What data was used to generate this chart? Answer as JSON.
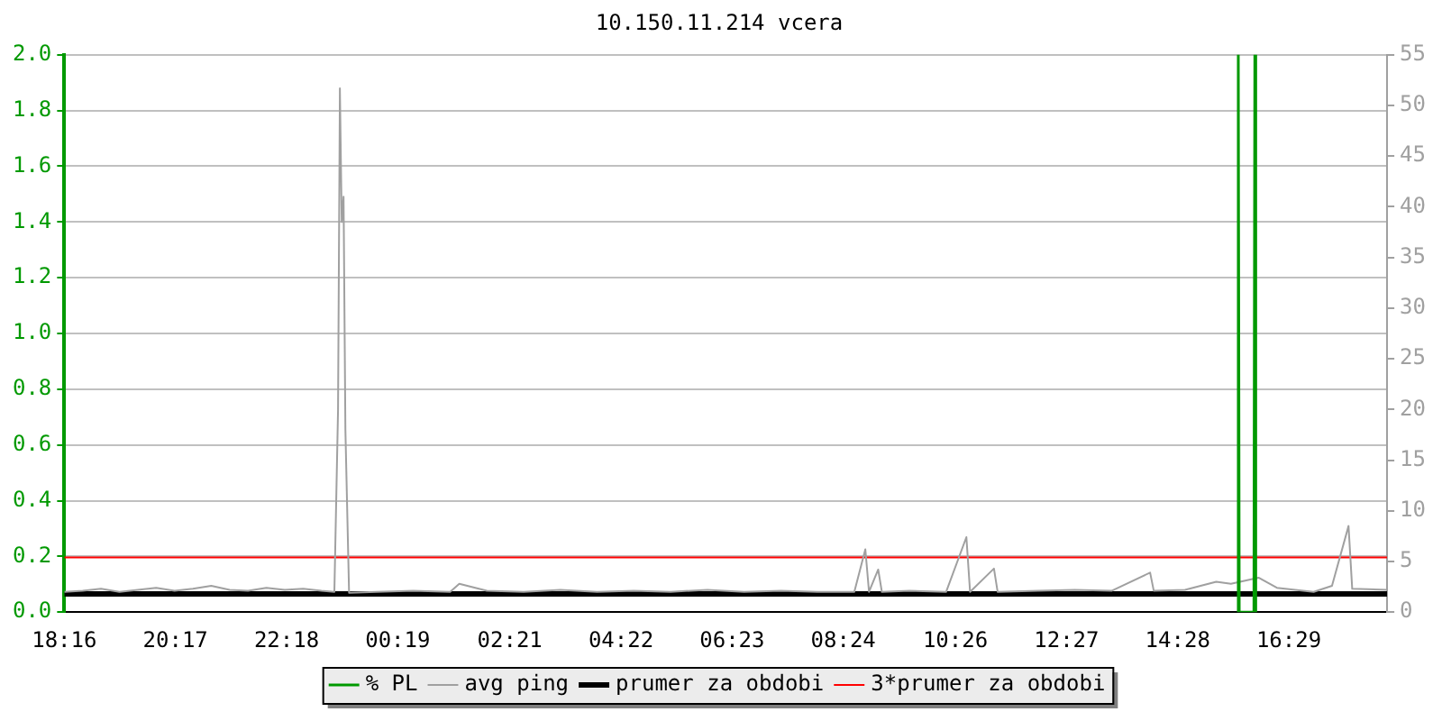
{
  "chart_data": {
    "type": "line",
    "title": "10.150.11.214 vcera",
    "xlim": [
      "--01-01T18:16",
      "--01-02T18:16"
    ],
    "xticks": [
      {
        "value": "--01-01T18:16",
        "label": "18:16"
      },
      {
        "value": "--01-01T20:17",
        "label": "20:17"
      },
      {
        "value": "--01-01T22:18",
        "label": "22:18"
      },
      {
        "value": "--01-02T00:19",
        "label": "00:19"
      },
      {
        "value": "--01-02T02:21",
        "label": "02:21"
      },
      {
        "value": "--01-02T04:22",
        "label": "04:22"
      },
      {
        "value": "--01-02T06:23",
        "label": "06:23"
      },
      {
        "value": "--01-02T08:24",
        "label": "08:24"
      },
      {
        "value": "--01-02T10:26",
        "label": "10:26"
      },
      {
        "value": "--01-02T12:27",
        "label": "12:27"
      },
      {
        "value": "--01-02T14:28",
        "label": "14:28"
      },
      {
        "value": "--01-02T16:29",
        "label": "16:29"
      }
    ],
    "ylim": [
      0,
      2
    ],
    "yticks": [
      {
        "value": 0,
        "label": "0.0"
      },
      0.2,
      0.4,
      0.6,
      0.8,
      {
        "value": 1,
        "label": "1.0"
      },
      1.2,
      1.4,
      1.6,
      1.8,
      {
        "value": 2,
        "label": "2.0"
      }
    ],
    "y2lim": [
      0,
      55
    ],
    "y2ticks": [
      0,
      5,
      10,
      15,
      20,
      25,
      30,
      35,
      40,
      45,
      50,
      55
    ],
    "grid": "y",
    "legend": "bottom",
    "marker": "none",
    "series": [
      {
        "name": "% PL",
        "color": "#009900",
        "x": [
          "--01-02T15:33",
          "--01-02T15:34",
          "--01-02T15:35",
          "--01-02T15:51",
          "--01-02T15:52",
          "--01-02T15:53"
        ],
        "values": [
          0,
          2.0,
          0,
          0,
          2.0,
          0
        ]
      },
      {
        "name": "avg ping",
        "color": "#a0a0a0",
        "axis": "y2",
        "x": [
          "--01-01T18:16",
          "--01-01T18:36",
          "--01-01T18:56",
          "--01-01T19:16",
          "--01-01T19:36",
          "--01-01T19:56",
          "--01-01T20:16",
          "--01-01T20:36",
          "--01-01T20:56",
          "--01-01T21:16",
          "--01-01T21:36",
          "--01-01T21:56",
          "--01-01T22:16",
          "--01-01T22:36",
          "--01-01T22:56",
          "--01-01T23:10",
          "--01-01T23:14",
          "--01-01T23:16",
          "--01-01T23:18",
          "--01-01T23:20",
          "--01-01T23:22",
          "--01-01T23:26",
          "--01-01T23:56",
          "--01-02T00:36",
          "--01-02T01:16",
          "--01-02T01:26",
          "--01-02T01:56",
          "--01-02T02:36",
          "--01-02T03:16",
          "--01-02T03:56",
          "--01-02T04:36",
          "--01-02T05:16",
          "--01-02T05:56",
          "--01-02T06:36",
          "--01-02T07:16",
          "--01-02T07:56",
          "--01-02T08:36",
          "--01-02T08:48",
          "--01-02T08:52",
          "--01-02T09:02",
          "--01-02T09:06",
          "--01-02T09:36",
          "--01-02T10:16",
          "--01-02T10:38",
          "--01-02T10:42",
          "--01-02T11:08",
          "--01-02T11:12",
          "--01-02T11:56",
          "--01-02T12:36",
          "--01-02T13:16",
          "--01-02T13:58",
          "--01-02T14:02",
          "--01-02T14:36",
          "--01-02T15:10",
          "--01-02T15:26",
          "--01-02T15:56",
          "--01-02T16:16",
          "--01-02T16:56",
          "--01-02T17:16",
          "--01-02T17:34",
          "--01-02T17:38",
          "--01-02T18:16"
        ],
        "values": [
          2.0,
          2.1,
          2.3,
          2.0,
          2.2,
          2.4,
          2.1,
          2.3,
          2.6,
          2.2,
          2.1,
          2.4,
          2.2,
          2.3,
          2.1,
          2.0,
          20,
          51.7,
          38.5,
          41,
          18,
          1.9,
          2.0,
          2.1,
          2.0,
          2.8,
          2.1,
          2.0,
          2.2,
          2.0,
          2.1,
          2.0,
          2.2,
          2.0,
          2.1,
          2.0,
          2.0,
          6.2,
          2.0,
          4.2,
          2.0,
          2.1,
          2.0,
          7.4,
          2.0,
          4.3,
          2.0,
          2.1,
          2.2,
          2.1,
          3.9,
          2.1,
          2.2,
          3.0,
          2.8,
          3.4,
          2.4,
          2.0,
          2.6,
          8.5,
          2.3,
          2.2
        ]
      },
      {
        "name": "prumer za obdobi",
        "color": "#000000",
        "axis": "y2",
        "x": [
          "--01-01T18:16",
          "--01-02T18:16"
        ],
        "values": [
          1.8,
          1.8
        ]
      },
      {
        "name": "3*prumer za obdobi",
        "color": "#ff0000",
        "axis": "y2",
        "x": [
          "--01-01T18:16",
          "--01-02T18:16"
        ],
        "values": [
          5.4,
          5.4
        ]
      }
    ]
  }
}
